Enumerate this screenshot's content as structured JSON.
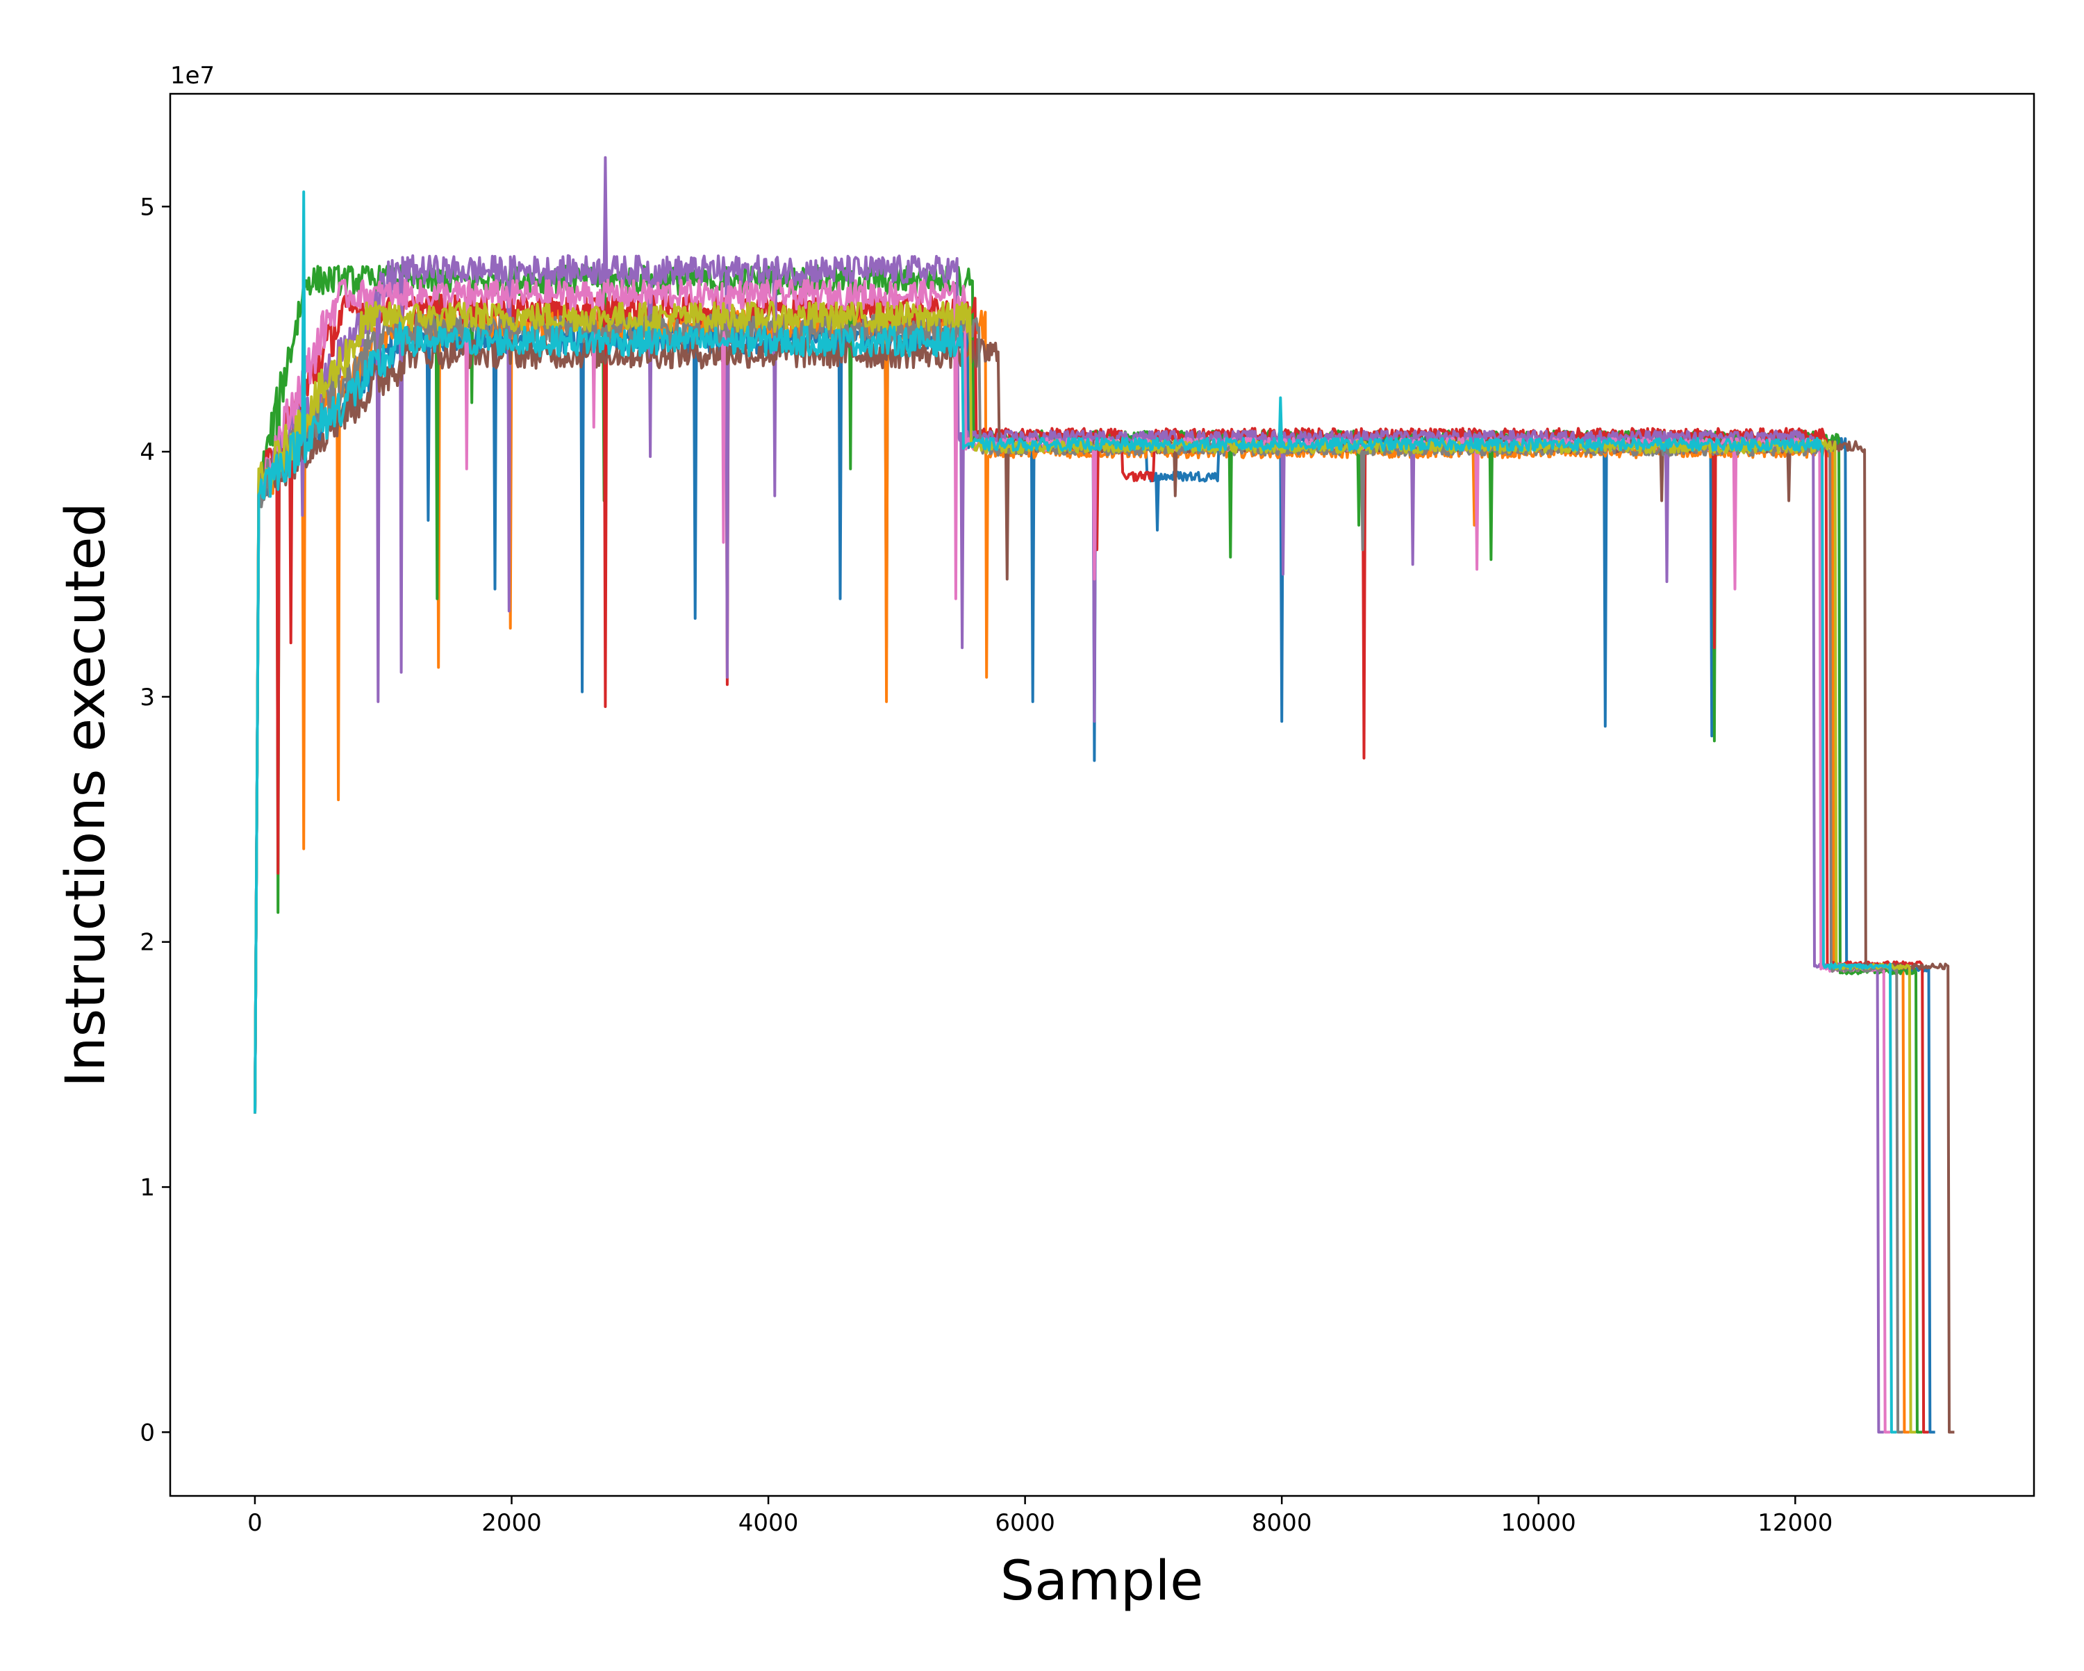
{
  "chart_data": {
    "type": "line",
    "title": "",
    "xlabel": "Sample",
    "ylabel": "Instructions executed",
    "y_offset_text": "1e7",
    "xlim": [
      -660,
      13860
    ],
    "ylim": [
      -0.26,
      5.46
    ],
    "y_scale_factor": 10000000,
    "x_ticks": [
      0,
      2000,
      4000,
      6000,
      8000,
      10000,
      12000
    ],
    "x_tick_labels": [
      "0",
      "2000",
      "4000",
      "6000",
      "8000",
      "10000",
      "12000"
    ],
    "y_ticks": [
      0,
      1,
      2,
      3,
      4,
      5
    ],
    "y_tick_labels": [
      "0",
      "1",
      "2",
      "3",
      "4",
      "5"
    ],
    "grid": false,
    "legend": "none",
    "series": [
      {
        "color": "#1f77b4",
        "ramp_end": 1150,
        "plateau1": 4.46,
        "phase1_end": 5560,
        "plateau2": 4.04,
        "phase2_end": 12400,
        "plateau3": 1.89,
        "end": 13050,
        "dips": [
          [
            1350,
            3.72
          ],
          [
            1870,
            3.44
          ],
          [
            2550,
            3.02
          ],
          [
            3430,
            3.32
          ],
          [
            4560,
            3.4
          ],
          [
            4920,
            3.2
          ],
          [
            6060,
            2.98
          ],
          [
            6540,
            2.74
          ],
          [
            7030,
            3.68
          ],
          [
            8000,
            2.9
          ],
          [
            10520,
            2.88
          ],
          [
            11350,
            2.84
          ]
        ],
        "bump": [
          6950,
          7500,
          3.9
        ]
      },
      {
        "color": "#ff7f0e",
        "ramp_end": 1100,
        "plateau1": 4.52,
        "phase1_end": 5700,
        "plateau2": 4.0,
        "phase2_end": 12300,
        "plateau3": 1.9,
        "end": 12850,
        "dips": [
          [
            380,
            2.38
          ],
          [
            650,
            2.58
          ],
          [
            1430,
            3.12
          ],
          [
            1990,
            3.28
          ],
          [
            4920,
            2.98
          ],
          [
            5700,
            3.08
          ],
          [
            9500,
            3.7
          ]
        ]
      },
      {
        "color": "#2ca02c",
        "ramp_end": 400,
        "plateau1": 4.7,
        "phase1_end": 5600,
        "plateau2": 4.06,
        "phase2_end": 12350,
        "plateau3": 1.88,
        "end": 12950,
        "dips": [
          [
            180,
            2.12
          ],
          [
            1420,
            3.4
          ],
          [
            1690,
            4.2
          ],
          [
            2720,
            3.8
          ],
          [
            4640,
            3.93
          ],
          [
            7600,
            3.57
          ],
          [
            8600,
            3.7
          ],
          [
            9630,
            3.56
          ],
          [
            11370,
            2.82
          ]
        ]
      },
      {
        "color": "#d62728",
        "ramp_end": 700,
        "plateau1": 4.58,
        "phase1_end": 5620,
        "plateau2": 4.07,
        "phase2_end": 12250,
        "plateau3": 1.91,
        "end": 13000,
        "dips": [
          [
            180,
            2.28
          ],
          [
            280,
            3.22
          ],
          [
            2730,
            2.96
          ],
          [
            3680,
            3.05
          ],
          [
            6560,
            3.6
          ],
          [
            8640,
            2.75
          ],
          [
            11370,
            3.2
          ]
        ],
        "bump": [
          6760,
          7000,
          3.9
        ]
      },
      {
        "color": "#9467bd",
        "ramp_end": 1100,
        "plateau1": 4.74,
        "phase1_end": 5480,
        "plateau2": 4.06,
        "phase2_end": 12150,
        "plateau3": 1.9,
        "end": 12650,
        "dips": [
          [
            370,
            3.74
          ],
          [
            960,
            2.98
          ],
          [
            1140,
            3.1
          ],
          [
            1980,
            3.35
          ],
          [
            2730,
            3.1
          ],
          [
            3080,
            3.98
          ],
          [
            3680,
            3.08
          ],
          [
            4050,
            3.82
          ],
          [
            5510,
            3.2
          ],
          [
            6540,
            2.9
          ],
          [
            8010,
            3.5
          ],
          [
            9020,
            3.54
          ],
          [
            11000,
            3.47
          ]
        ],
        "spike": [
          2730,
          5.2
        ]
      },
      {
        "color": "#8c564b",
        "ramp_end": 1200,
        "plateau1": 4.4,
        "phase1_end": 5800,
        "plateau2": 4.02,
        "phase2_end": 12550,
        "plateau3": 1.9,
        "end": 13200,
        "dips": [
          [
            5860,
            3.48
          ],
          [
            7170,
            3.82
          ],
          [
            10960,
            3.8
          ],
          [
            11950,
            3.8
          ]
        ]
      },
      {
        "color": "#e377c2",
        "ramp_end": 650,
        "plateau1": 4.64,
        "phase1_end": 5540,
        "plateau2": 4.03,
        "phase2_end": 12200,
        "plateau3": 1.89,
        "end": 12700,
        "dips": [
          [
            1650,
            3.93
          ],
          [
            2640,
            4.1
          ],
          [
            3650,
            3.63
          ],
          [
            5460,
            3.4
          ],
          [
            6540,
            3.48
          ],
          [
            9520,
            3.52
          ],
          [
            11530,
            3.44
          ]
        ]
      },
      {
        "color": "#7f7f7f",
        "ramp_end": 1000,
        "plateau1": 4.5,
        "phase1_end": 5650,
        "plateau2": 4.01,
        "phase2_end": 12280,
        "plateau3": 1.89,
        "end": 12800,
        "dips": [
          [
            8630,
            3.6
          ]
        ]
      },
      {
        "color": "#bcbd22",
        "ramp_end": 900,
        "plateau1": 4.55,
        "phase1_end": 5580,
        "plateau2": 4.02,
        "phase2_end": 12320,
        "plateau3": 1.9,
        "end": 12900,
        "dips": []
      },
      {
        "color": "#17becf",
        "ramp_end": 1150,
        "plateau1": 4.45,
        "phase1_end": 5520,
        "plateau2": 4.03,
        "phase2_end": 12220,
        "plateau3": 1.9,
        "end": 12750,
        "dips": [
          [
            380,
            5.06
          ],
          [
            7990,
            4.22
          ]
        ]
      }
    ]
  }
}
